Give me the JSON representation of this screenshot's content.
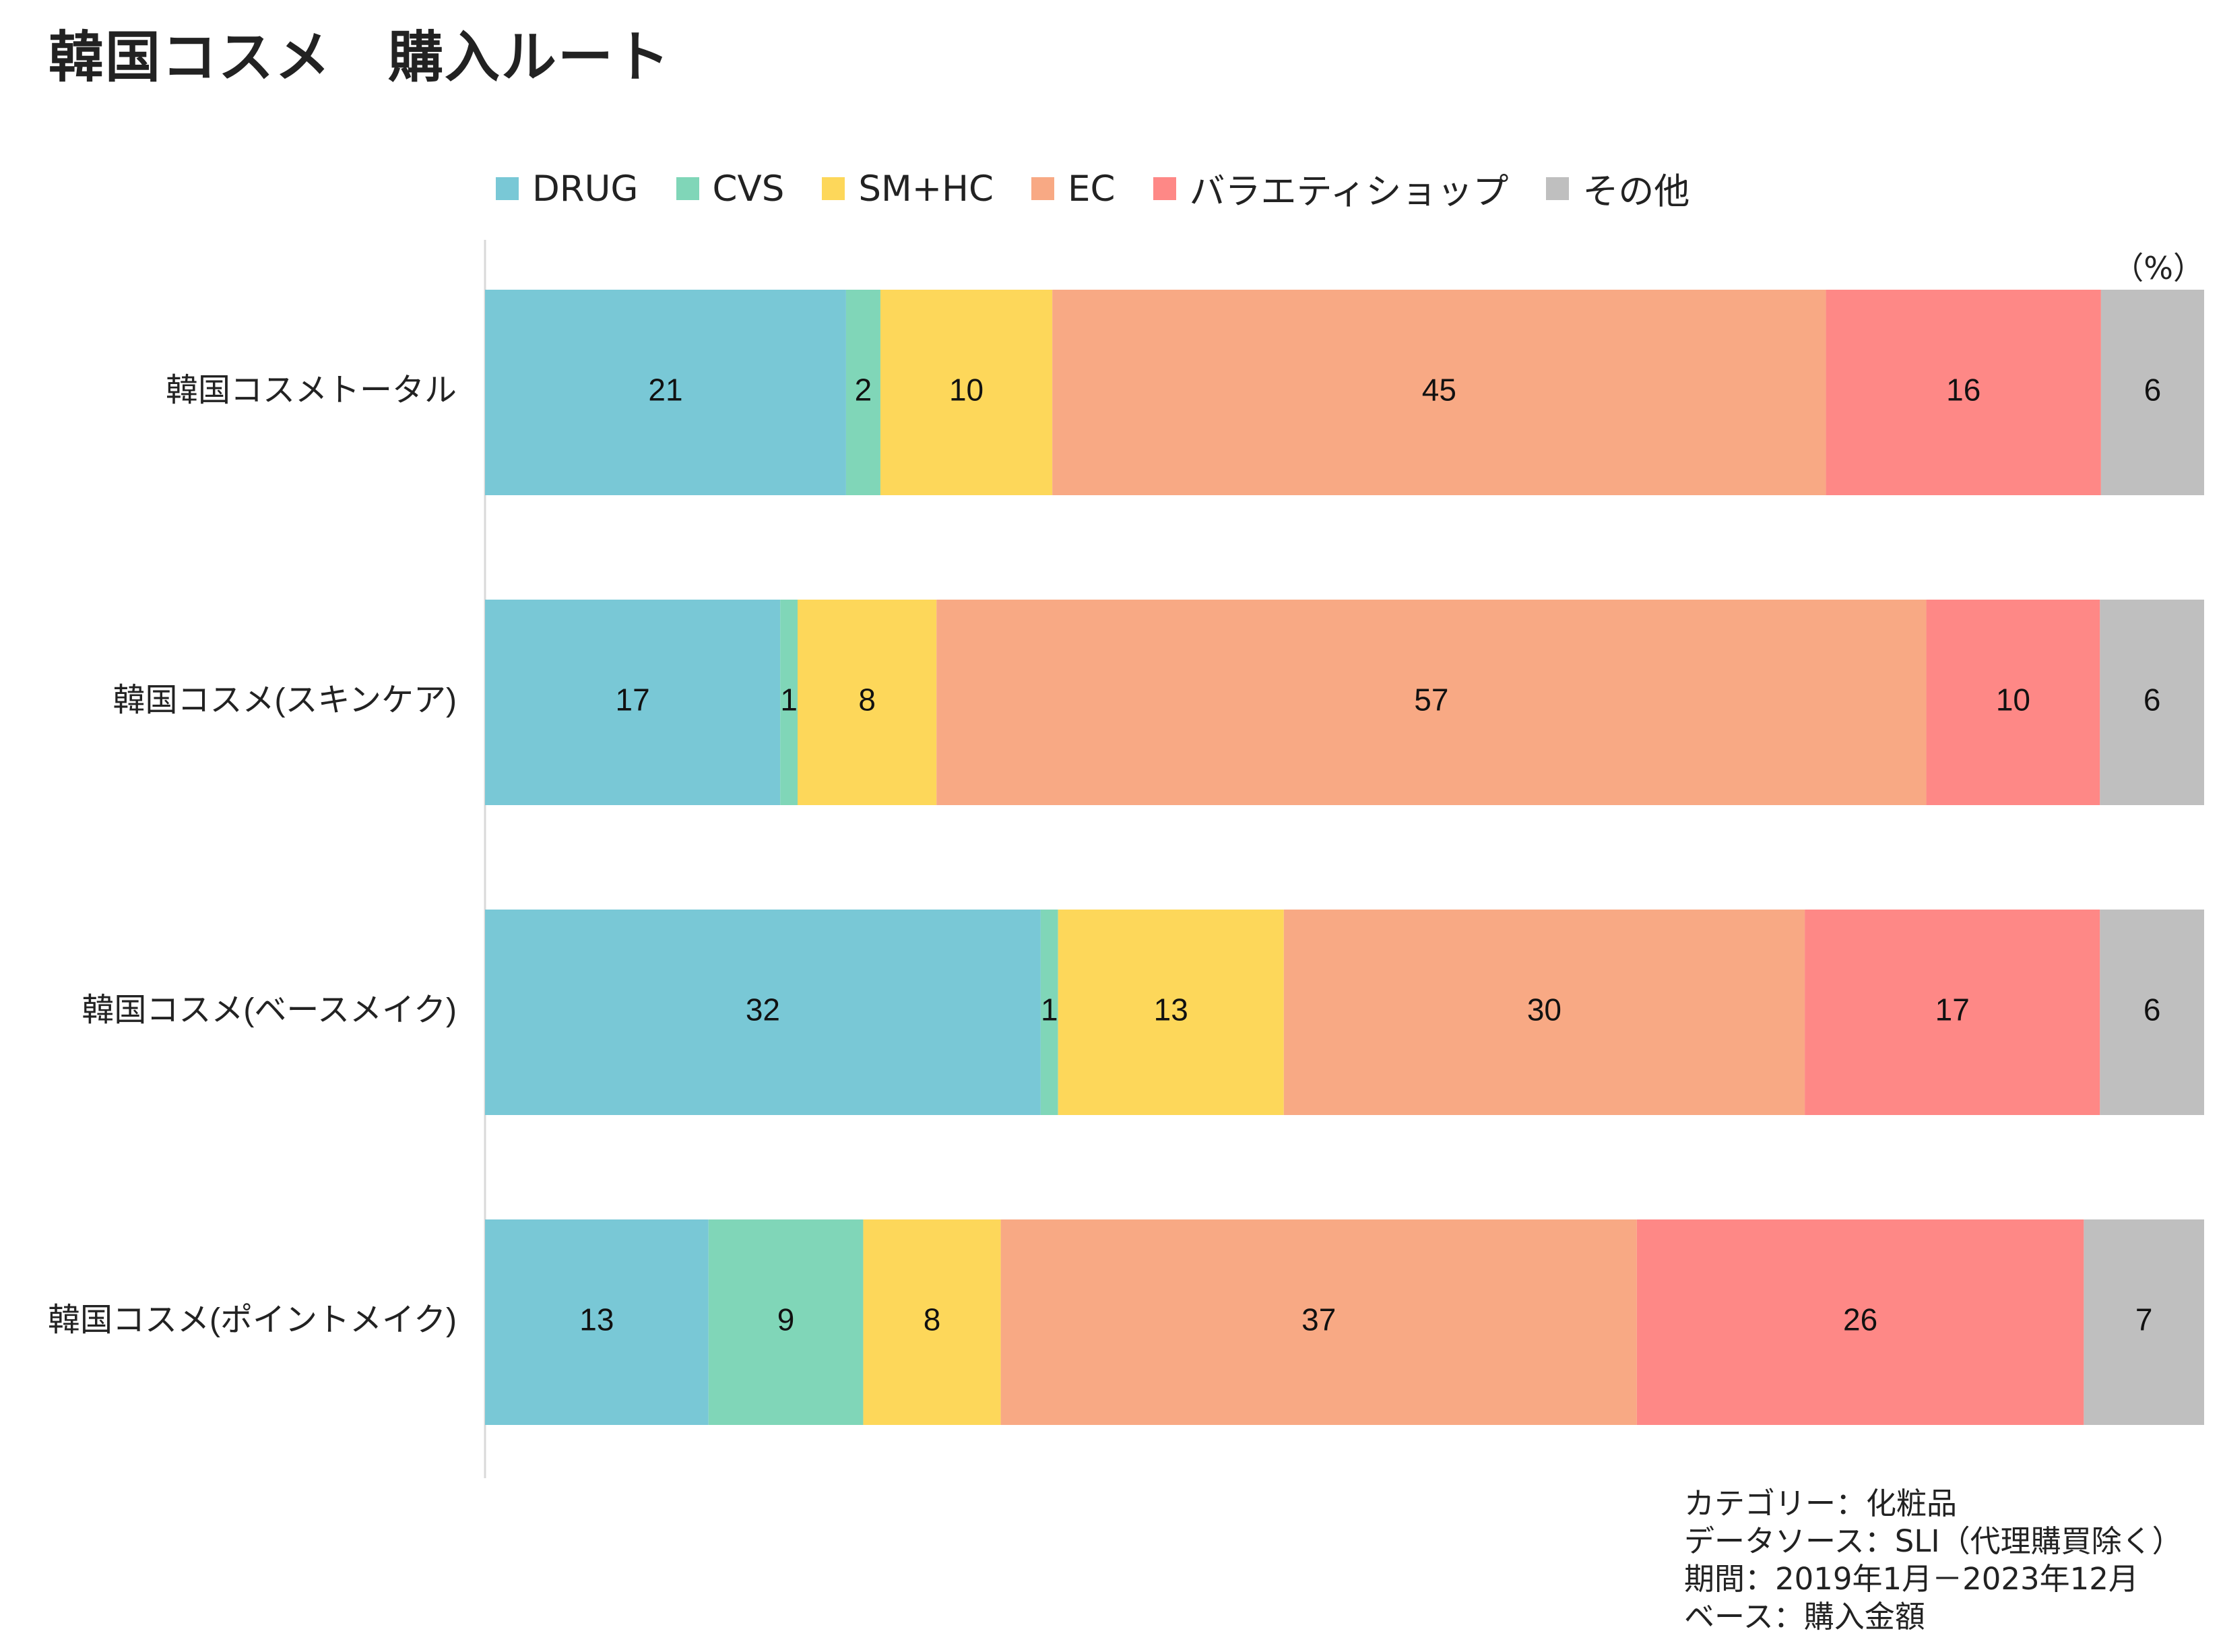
{
  "title": "韓国コスメ　購入ルート",
  "unit_label": "（%）",
  "chart_data": {
    "type": "bar",
    "orientation": "horizontal",
    "stacked": true,
    "title": "韓国コスメ　購入ルート",
    "unit": "（%）",
    "legend_position": "top",
    "grid": false,
    "xlim": [
      0,
      100
    ],
    "categories": [
      "韓国コスメトータル",
      "韓国コスメ(スキンケア)",
      "韓国コスメ(ベースメイク)",
      "韓国コスメ(ポイントメイク)"
    ],
    "series": [
      {
        "name": "DRUG",
        "color": "#79C8D6",
        "values": [
          21,
          17,
          32,
          13
        ]
      },
      {
        "name": "CVS",
        "color": "#80D6B8",
        "values": [
          2,
          1,
          1,
          9
        ]
      },
      {
        "name": "SM+HC",
        "color": "#FDD75A",
        "values": [
          10,
          8,
          13,
          8
        ]
      },
      {
        "name": "EC",
        "color": "#F8A984",
        "values": [
          45,
          57,
          30,
          37
        ]
      },
      {
        "name": "バラエティショップ",
        "color": "#FE8886",
        "values": [
          16,
          10,
          17,
          26
        ]
      },
      {
        "name": "その他",
        "color": "#BFBFBF",
        "values": [
          6,
          6,
          6,
          7
        ]
      }
    ]
  },
  "footnotes": [
    "カテゴリー：化粧品",
    "データソース：SLI（代理購買除く）",
    "期間：2019年1月－2023年12月",
    "ベース：購入金額"
  ]
}
